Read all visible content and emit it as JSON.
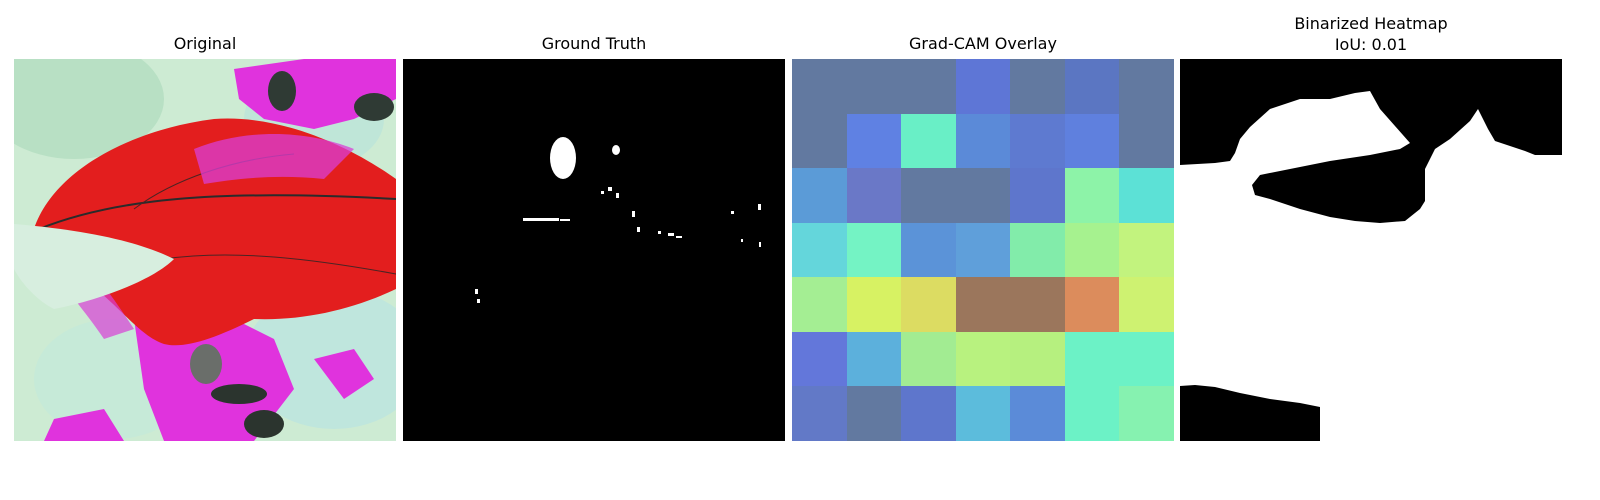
{
  "panels": [
    {
      "title": "Original"
    },
    {
      "title": "Ground Truth"
    },
    {
      "title": "Grad-CAM Overlay"
    },
    {
      "title": "Binarized Heatmap",
      "subtitle": "IoU: 0.01"
    }
  ],
  "gradcam_grid": [
    [
      "#6279a0",
      "#6279a0",
      "#6279a0",
      "#5e76d6",
      "#6279a0",
      "#5b76c2",
      "#6279a0"
    ],
    [
      "#6279a0",
      "#5f81e3",
      "#69efc6",
      "#5b8ad8",
      "#5e7ad0",
      "#5f80de",
      "#6279a0"
    ],
    [
      "#5b9bd7",
      "#6a78c7",
      "#6279a0",
      "#6279a0",
      "#5e76cc",
      "#8df3a8",
      "#5ce1d6"
    ],
    [
      "#64d6db",
      "#74f3c4",
      "#5b93d8",
      "#5f9fda",
      "#82ecaa",
      "#a6f28f",
      "#c2f37e"
    ],
    [
      "#a4ee93",
      "#d7f263",
      "#dcdc62",
      "#9b765c",
      "#9b765c",
      "#dc8c5c",
      "#cef271"
    ],
    [
      "#6377da",
      "#5cb0dc",
      "#a2ec92",
      "#b8f27f",
      "#b6f07f",
      "#6cf2c6",
      "#6cf2c6"
    ],
    [
      "#6279c7",
      "#6279a0",
      "#5e76cc",
      "#5cbcdc",
      "#5b8bd8",
      "#6cf2c6",
      "#86f2b0"
    ]
  ],
  "colors": {
    "leaf_red": "#e41d1d",
    "magenta": "#e62cde",
    "background_light": "#c9ead0",
    "mask_white": "#ffffff",
    "mask_black": "#000000"
  }
}
